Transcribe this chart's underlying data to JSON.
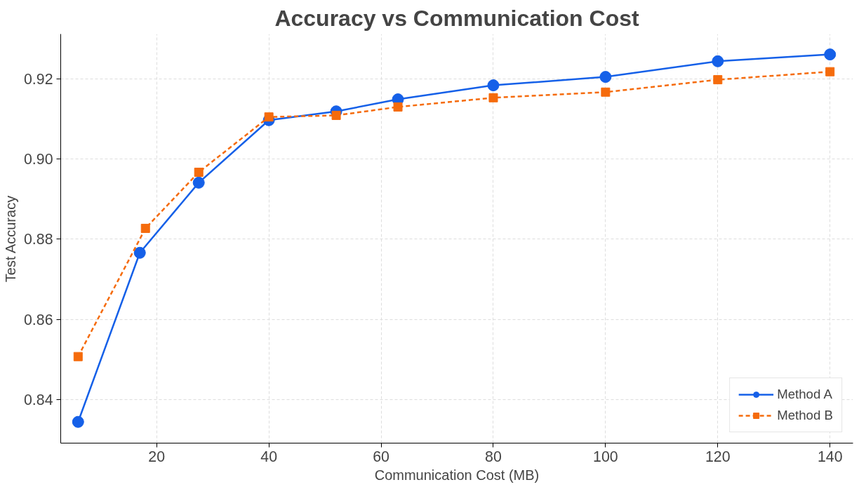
{
  "chart_data": {
    "type": "line",
    "title": "Accuracy vs Communication Cost",
    "xlabel": "Communication Cost (MB)",
    "ylabel": "Test Accuracy",
    "xlim": [
      2.9,
      144.1
    ],
    "xticks": [
      20,
      40,
      60,
      80,
      100,
      120,
      140
    ],
    "ylim": [
      0.8291,
      0.9312
    ],
    "yticks": [
      0.84,
      0.86,
      0.88,
      {
        "value": 0.9,
        "label": "0.90"
      },
      0.92
    ],
    "grid": true,
    "legend": "bottom right",
    "series": [
      {
        "name": "Method A",
        "color": "#1560e8",
        "marker": "circle",
        "line_style": "solid",
        "x": [
          6,
          17,
          27.5,
          40,
          52,
          63,
          80,
          100,
          120,
          140
        ],
        "values": [
          0.8344,
          0.8766,
          0.8941,
          0.9097,
          0.9119,
          0.9149,
          0.9184,
          0.9205,
          0.9244,
          0.9261
        ]
      },
      {
        "name": "Method B",
        "color": "#f56b0c",
        "marker": "square",
        "line_style": "dashed",
        "x": [
          6,
          18,
          27.5,
          40,
          52,
          63,
          80,
          100,
          120,
          140
        ],
        "values": [
          0.8507,
          0.8827,
          0.8967,
          0.9105,
          0.9109,
          0.913,
          0.9153,
          0.9167,
          0.9198,
          0.9218
        ]
      }
    ]
  }
}
